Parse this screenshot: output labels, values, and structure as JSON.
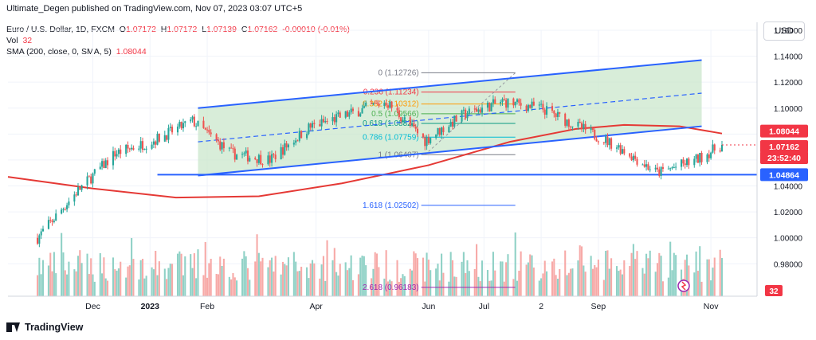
{
  "header": {
    "published": "Ultimate_Degen published on TradingView.com, Nov 07, 2023 03:07 UTC+5"
  },
  "legend": {
    "symbol": "Euro / U.S. Dollar, 1D, FXCM",
    "o_label": "O",
    "o": "1.07172",
    "h_label": "H",
    "h": "1.07172",
    "l_label": "L",
    "l": "1.07139",
    "c_label": "C",
    "c": "1.07162",
    "chg": "-0.00010 (-0.01%)",
    "vol_label": "Vol",
    "vol": "32",
    "sma_label": "SMA (200, close, 0, SMA, 5)",
    "sma": "1.08044"
  },
  "currency_button": "USD",
  "brand": "TradingView",
  "colors": {
    "up": "#26a69a",
    "down": "#ef5350",
    "up_vol": "#8fd1c6",
    "down_vol": "#f7a9a7",
    "channel": "#2962ff",
    "sma": "#e53935",
    "fill": "#c8e6c9"
  },
  "chart_data": {
    "type": "candlestick",
    "x": [
      "2022-11-01",
      "2022-11-22",
      "2022-12-13",
      "2023-01-03",
      "2023-01-24",
      "2023-02-14",
      "2023-03-07",
      "2023-03-28",
      "2023-04-18",
      "2023-05-09",
      "2023-05-30",
      "2023-06-20",
      "2023-07-11",
      "2023-08-01",
      "2023-08-22",
      "2023-09-12",
      "2023-10-03",
      "2023-10-24",
      "2023-11-07"
    ],
    "close": [
      1.0,
      1.035,
      1.065,
      1.075,
      1.09,
      1.065,
      1.06,
      1.085,
      1.095,
      1.105,
      1.075,
      1.095,
      1.105,
      1.1,
      1.085,
      1.07,
      1.05,
      1.06,
      1.0716
    ],
    "ylim": [
      0.955,
      1.16
    ],
    "y_ticks": [
      "1.16000",
      "1.14000",
      "1.12000",
      "1.10000",
      "1.08000",
      "1.06000",
      "1.04000",
      "1.02000",
      "1.00000",
      "0.98000"
    ],
    "x_ticks": [
      "Dec",
      "2023",
      "Feb",
      "Apr",
      "Jun",
      "Jul",
      "2",
      "Sep",
      "Nov"
    ],
    "price_labels": {
      "sma": "1.08044",
      "close": "1.07162",
      "countdown": "23:52:40",
      "support": "1.04864",
      "volume": "32"
    },
    "fibonacci": [
      {
        "level": "0",
        "price": "1.12726"
      },
      {
        "level": "0.236",
        "price": "1.11234"
      },
      {
        "level": "0.382",
        "price": "1.10312"
      },
      {
        "level": "0.5",
        "price": "1.09566"
      },
      {
        "level": "0.618",
        "price": "1.08821"
      },
      {
        "level": "0.786",
        "price": "1.07759"
      },
      {
        "level": "1",
        "price": "1.06407"
      },
      {
        "level": "1.618",
        "price": "1.02502"
      },
      {
        "level": "2.618",
        "price": "0.96183"
      }
    ],
    "volume_series": "Vol",
    "sma_series": "SMA 200"
  }
}
